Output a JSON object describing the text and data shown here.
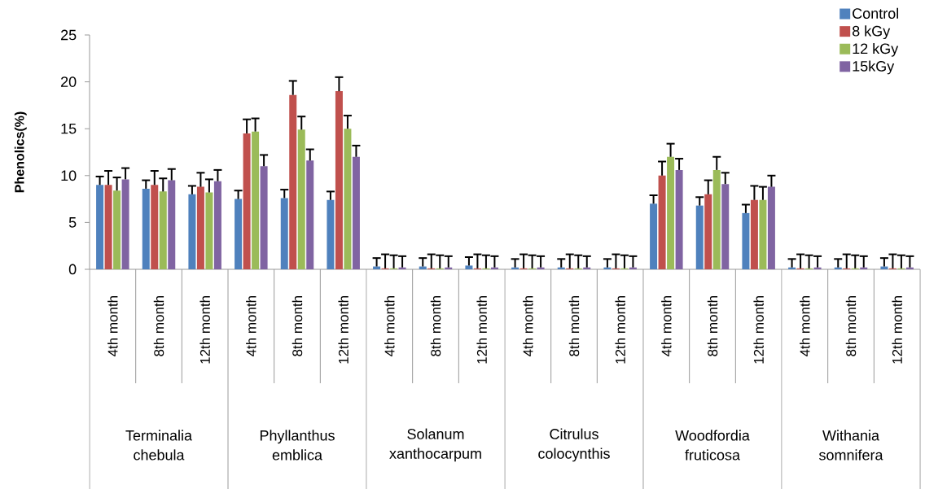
{
  "chart_data": {
    "type": "bar",
    "ylabel": "Phenolics(%)",
    "categories": [
      "4th month",
      "8th month",
      "12th month",
      "4th month",
      "8th month",
      "12th month",
      "4th month",
      "8th month",
      "12th month",
      "4th month",
      "8th month",
      "12th month",
      "4th month",
      "8th month",
      "12th month",
      "4th month",
      "8th month",
      "12th month"
    ],
    "annotations": [
      "Terminalia chebula",
      "Phyllanthus emblica",
      "Solanum xanthocarpum",
      "Citrulus colocynthis",
      "Woodfordia fruticosa",
      "Withania somnifera"
    ],
    "series": [
      {
        "name": "Control",
        "color": "#4f81bd",
        "values": [
          9.0,
          8.6,
          8.0,
          7.5,
          7.6,
          7.4,
          0.3,
          0.3,
          0.4,
          0.2,
          0.2,
          0.2,
          7.0,
          6.8,
          6.0,
          0.2,
          0.2,
          0.3
        ],
        "errors": [
          0.9,
          0.9,
          0.9,
          0.9,
          0.9,
          0.9,
          0.9,
          0.9,
          0.9,
          0.9,
          0.9,
          0.9,
          0.9,
          0.9,
          0.9,
          0.9,
          0.9,
          0.9
        ]
      },
      {
        "name": "8 kGy",
        "color": "#c0504d",
        "values": [
          9.0,
          9.0,
          8.8,
          14.5,
          18.6,
          19.0,
          0.1,
          0.1,
          0.1,
          0.1,
          0.1,
          0.1,
          10.0,
          8.0,
          7.4,
          0.1,
          0.1,
          0.1
        ],
        "errors": [
          1.5,
          1.5,
          1.5,
          1.5,
          1.5,
          1.5,
          1.5,
          1.5,
          1.5,
          1.5,
          1.5,
          1.5,
          1.5,
          1.5,
          1.5,
          1.5,
          1.5,
          1.5
        ]
      },
      {
        "name": "12 kGy",
        "color": "#9bbb59",
        "values": [
          8.4,
          8.3,
          8.2,
          14.7,
          14.9,
          15.0,
          0.1,
          0.1,
          0.1,
          0.1,
          0.1,
          0.1,
          12.0,
          10.6,
          7.4,
          0.1,
          0.1,
          0.1
        ],
        "errors": [
          1.4,
          1.4,
          1.4,
          1.4,
          1.4,
          1.4,
          1.4,
          1.4,
          1.4,
          1.4,
          1.4,
          1.4,
          1.4,
          1.4,
          1.4,
          1.4,
          1.4,
          1.4
        ]
      },
      {
        "name": "15kGy",
        "color": "#8064a2",
        "values": [
          9.6,
          9.5,
          9.4,
          11.0,
          11.6,
          12.0,
          0.2,
          0.2,
          0.2,
          0.2,
          0.2,
          0.2,
          10.6,
          9.1,
          8.8,
          0.2,
          0.2,
          0.2
        ],
        "errors": [
          1.2,
          1.2,
          1.2,
          1.2,
          1.2,
          1.2,
          1.2,
          1.2,
          1.2,
          1.2,
          1.2,
          1.2,
          1.2,
          1.2,
          1.2,
          1.2,
          1.2,
          1.2
        ]
      }
    ],
    "ylim": [
      0,
      25
    ],
    "yticks": [
      0,
      5,
      10,
      15,
      20,
      25
    ],
    "legend": "top right",
    "grid": false
  }
}
